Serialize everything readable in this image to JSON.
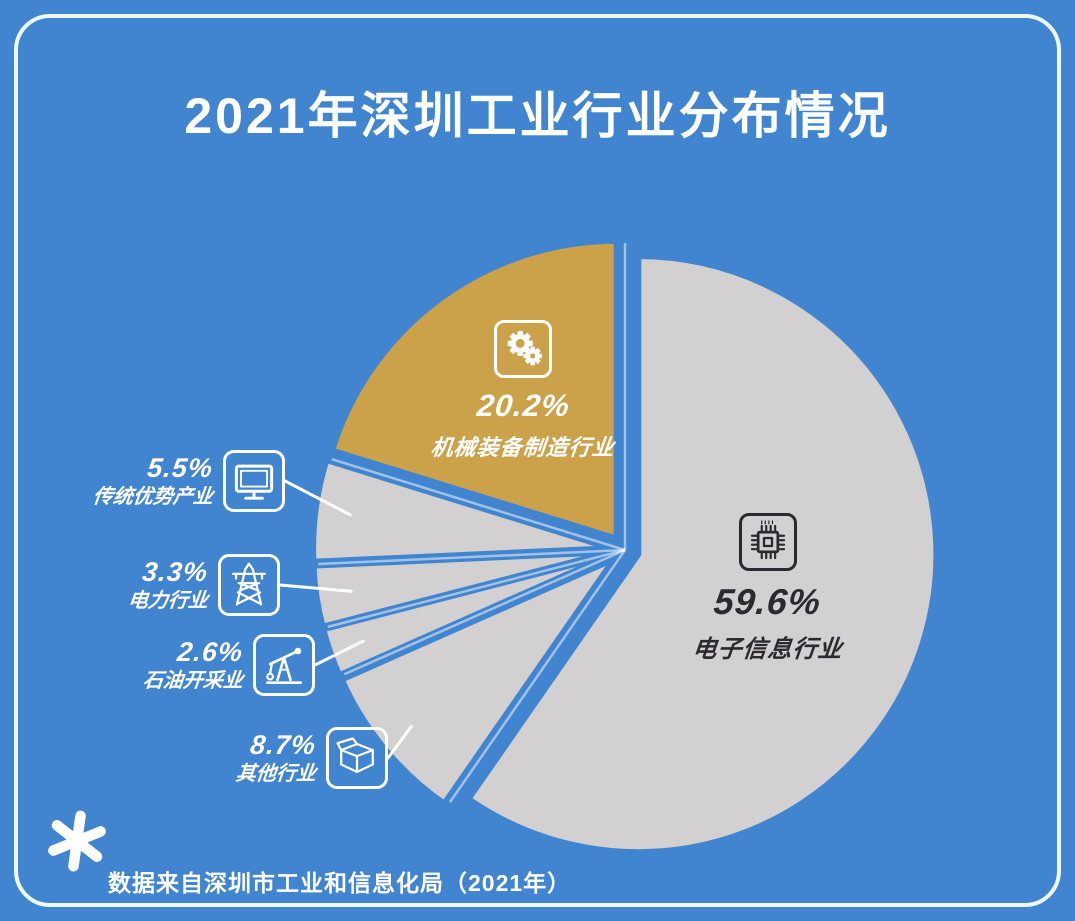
{
  "title": "2021年深圳工业行业分布情况",
  "footer": {
    "source_note": "数据来自深圳市工业和信息化局（2021年）",
    "marker_icon": "asterisk-icon"
  },
  "colors": {
    "background": "#4184cf",
    "frame": "#ecf8fc",
    "slice_gray": "#d2d0d0",
    "slice_gold": "#cba24a",
    "dark_text": "#2b2a30",
    "white_text": "#ffffff"
  },
  "chart_data": {
    "type": "pie",
    "title": "2021年深圳工业行业分布情况",
    "start_angle_deg": 0,
    "direction": "clockwise",
    "legend_position": "labels-on-slices-and-left-callouts",
    "slices": [
      {
        "name": "电子信息行业",
        "value": 59.6,
        "pct_label": "59.6%",
        "color": "#d2d0d0",
        "icon": "chip-icon",
        "label_position": "inside"
      },
      {
        "name": "其他行业",
        "value": 8.7,
        "pct_label": "8.7%",
        "color": "#d2d0d0",
        "icon": "box-icon",
        "label_position": "outside-left"
      },
      {
        "name": "石油开采业",
        "value": 2.6,
        "pct_label": "2.6%",
        "color": "#d2d0d0",
        "icon": "oil-pump-icon",
        "label_position": "outside-left"
      },
      {
        "name": "电力行业",
        "value": 3.3,
        "pct_label": "3.3%",
        "color": "#d2d0d0",
        "icon": "power-tower-icon",
        "label_position": "outside-left"
      },
      {
        "name": "传统优势产业",
        "value": 5.5,
        "pct_label": "5.5%",
        "color": "#d2d0d0",
        "icon": "monitor-icon",
        "label_position": "outside-left"
      },
      {
        "name": "机械装备制造行业",
        "value": 20.2,
        "pct_label": "20.2%",
        "color": "#cba24a",
        "icon": "gears-icon",
        "label_position": "inside"
      }
    ]
  }
}
